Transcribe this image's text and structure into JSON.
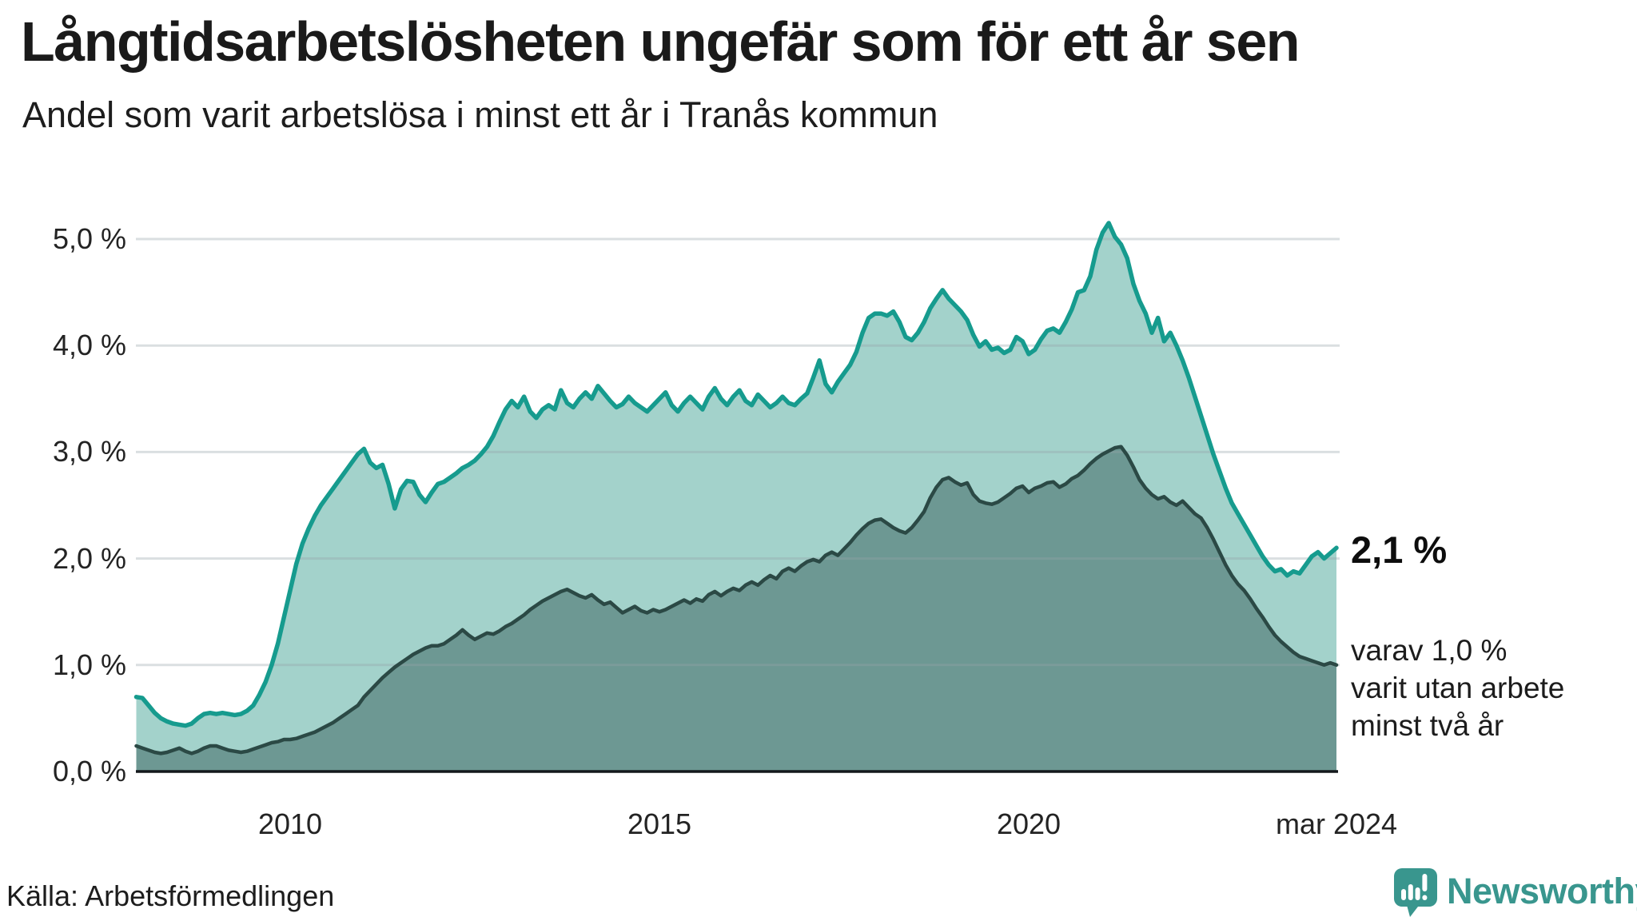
{
  "title": "Långtidsarbetslösheten ungefär som för ett år sen",
  "subtitle": "Andel som varit arbetslösa i minst ett år i Tranås kommun",
  "source": "Källa: Arbetsförmedlingen",
  "branding": {
    "name": "Newsworthy",
    "icon": "newsworthy-speech-bubble-bar-chart-icon",
    "color": "#39968e"
  },
  "annotations": {
    "latest_total": "2,1 %",
    "breakdown_lines": [
      "varav 1,0 %",
      "varit utan arbete",
      "minst två år"
    ]
  },
  "axis": {
    "y_ticks": [
      {
        "label": "0,0 %",
        "value": 0
      },
      {
        "label": "1,0 %",
        "value": 1
      },
      {
        "label": "2,0 %",
        "value": 2
      },
      {
        "label": "3,0 %",
        "value": 3
      },
      {
        "label": "4,0 %",
        "value": 4
      },
      {
        "label": "5,0 %",
        "value": 5
      }
    ],
    "x_ticks": [
      {
        "label": "2010",
        "t": 2010
      },
      {
        "label": "2015",
        "t": 2015
      },
      {
        "label": "2020",
        "t": 2020
      },
      {
        "label": "mar 2024",
        "t": 2024.167
      }
    ]
  },
  "colors": {
    "accent_teal_line": "#169b8e",
    "fill_light": "#a3d2cb",
    "dark_line": "#2b4945",
    "fill_dark": "#6d9893",
    "gridline_rgba": "rgba(150,163,170,0.35)",
    "axis_line": "#14181c",
    "text": "#1a1a1a",
    "brand_teal": "#39968e"
  },
  "chart_data": {
    "type": "area",
    "unit": "percent",
    "x_start": "2007-12",
    "x_end": "2024-03",
    "x_step_months": 1,
    "ylim": [
      0,
      5.3
    ],
    "y_gridline_values": [
      1,
      2,
      3,
      4,
      5
    ],
    "grid": true,
    "legend_position": "none",
    "series": [
      {
        "name": "Andel arbetslösa minst ett år",
        "end_label": "2,1 %",
        "line_color": "#169b8e",
        "fill_color": "#a3d2cb",
        "line_width": 5.5,
        "values": [
          0.7,
          0.69,
          0.62,
          0.55,
          0.5,
          0.47,
          0.45,
          0.44,
          0.43,
          0.45,
          0.5,
          0.54,
          0.55,
          0.54,
          0.55,
          0.54,
          0.53,
          0.54,
          0.57,
          0.62,
          0.72,
          0.84,
          1.0,
          1.2,
          1.45,
          1.7,
          1.95,
          2.14,
          2.28,
          2.4,
          2.5,
          2.58,
          2.66,
          2.74,
          2.82,
          2.9,
          2.98,
          3.03,
          2.9,
          2.85,
          2.88,
          2.7,
          2.47,
          2.65,
          2.73,
          2.72,
          2.6,
          2.53,
          2.62,
          2.7,
          2.72,
          2.76,
          2.8,
          2.85,
          2.88,
          2.92,
          2.98,
          3.05,
          3.15,
          3.28,
          3.4,
          3.48,
          3.42,
          3.52,
          3.38,
          3.32,
          3.4,
          3.44,
          3.4,
          3.58,
          3.46,
          3.42,
          3.5,
          3.56,
          3.5,
          3.62,
          3.55,
          3.48,
          3.42,
          3.45,
          3.52,
          3.46,
          3.42,
          3.38,
          3.44,
          3.5,
          3.56,
          3.44,
          3.38,
          3.46,
          3.52,
          3.46,
          3.4,
          3.52,
          3.6,
          3.5,
          3.44,
          3.52,
          3.58,
          3.48,
          3.44,
          3.54,
          3.48,
          3.42,
          3.46,
          3.52,
          3.46,
          3.44,
          3.5,
          3.55,
          3.7,
          3.86,
          3.64,
          3.56,
          3.66,
          3.74,
          3.82,
          3.94,
          4.12,
          4.26,
          4.3,
          4.3,
          4.28,
          4.32,
          4.22,
          4.08,
          4.05,
          4.12,
          4.22,
          4.35,
          4.44,
          4.52,
          4.44,
          4.38,
          4.32,
          4.24,
          4.1,
          3.99,
          4.04,
          3.96,
          3.98,
          3.93,
          3.96,
          4.08,
          4.04,
          3.92,
          3.96,
          4.06,
          4.14,
          4.16,
          4.12,
          4.22,
          4.34,
          4.5,
          4.52,
          4.65,
          4.9,
          5.06,
          5.15,
          5.02,
          4.95,
          4.82,
          4.58,
          4.42,
          4.3,
          4.12,
          4.26,
          4.04,
          4.12,
          4.0,
          3.86,
          3.7,
          3.52,
          3.34,
          3.16,
          2.98,
          2.82,
          2.66,
          2.52,
          2.42,
          2.32,
          2.22,
          2.12,
          2.02,
          1.94,
          1.88,
          1.9,
          1.84,
          1.88,
          1.86,
          1.94,
          2.02,
          2.06,
          2.0,
          2.05,
          2.1
        ]
      },
      {
        "name": "Andel arbetslösa minst två år",
        "end_label": "1,0 %",
        "line_color": "#2b4945",
        "fill_color": "#6d9893",
        "line_width": 4.5,
        "values": [
          0.24,
          0.22,
          0.2,
          0.18,
          0.17,
          0.18,
          0.2,
          0.22,
          0.19,
          0.17,
          0.19,
          0.22,
          0.24,
          0.24,
          0.22,
          0.2,
          0.19,
          0.18,
          0.19,
          0.21,
          0.23,
          0.25,
          0.27,
          0.28,
          0.3,
          0.3,
          0.31,
          0.33,
          0.35,
          0.37,
          0.4,
          0.43,
          0.46,
          0.5,
          0.54,
          0.58,
          0.62,
          0.7,
          0.76,
          0.82,
          0.88,
          0.93,
          0.98,
          1.02,
          1.06,
          1.1,
          1.13,
          1.16,
          1.18,
          1.18,
          1.2,
          1.24,
          1.28,
          1.33,
          1.28,
          1.24,
          1.27,
          1.3,
          1.29,
          1.32,
          1.36,
          1.39,
          1.43,
          1.47,
          1.52,
          1.56,
          1.6,
          1.63,
          1.66,
          1.69,
          1.71,
          1.68,
          1.65,
          1.63,
          1.66,
          1.61,
          1.57,
          1.59,
          1.54,
          1.49,
          1.52,
          1.55,
          1.51,
          1.49,
          1.52,
          1.5,
          1.52,
          1.55,
          1.58,
          1.61,
          1.58,
          1.62,
          1.6,
          1.66,
          1.69,
          1.65,
          1.69,
          1.72,
          1.7,
          1.75,
          1.78,
          1.75,
          1.8,
          1.84,
          1.81,
          1.88,
          1.91,
          1.88,
          1.93,
          1.97,
          1.99,
          1.97,
          2.03,
          2.06,
          2.03,
          2.09,
          2.15,
          2.22,
          2.28,
          2.33,
          2.36,
          2.37,
          2.33,
          2.29,
          2.26,
          2.24,
          2.29,
          2.36,
          2.44,
          2.57,
          2.67,
          2.74,
          2.76,
          2.72,
          2.69,
          2.71,
          2.6,
          2.54,
          2.52,
          2.51,
          2.53,
          2.57,
          2.61,
          2.66,
          2.68,
          2.62,
          2.66,
          2.68,
          2.71,
          2.72,
          2.67,
          2.7,
          2.75,
          2.78,
          2.83,
          2.89,
          2.94,
          2.98,
          3.01,
          3.04,
          3.05,
          2.97,
          2.86,
          2.74,
          2.66,
          2.6,
          2.56,
          2.58,
          2.53,
          2.5,
          2.54,
          2.48,
          2.42,
          2.38,
          2.29,
          2.18,
          2.06,
          1.94,
          1.84,
          1.76,
          1.7,
          1.62,
          1.53,
          1.45,
          1.36,
          1.28,
          1.22,
          1.17,
          1.12,
          1.08,
          1.06,
          1.04,
          1.02,
          1.0,
          1.02,
          1.0
        ]
      }
    ]
  }
}
